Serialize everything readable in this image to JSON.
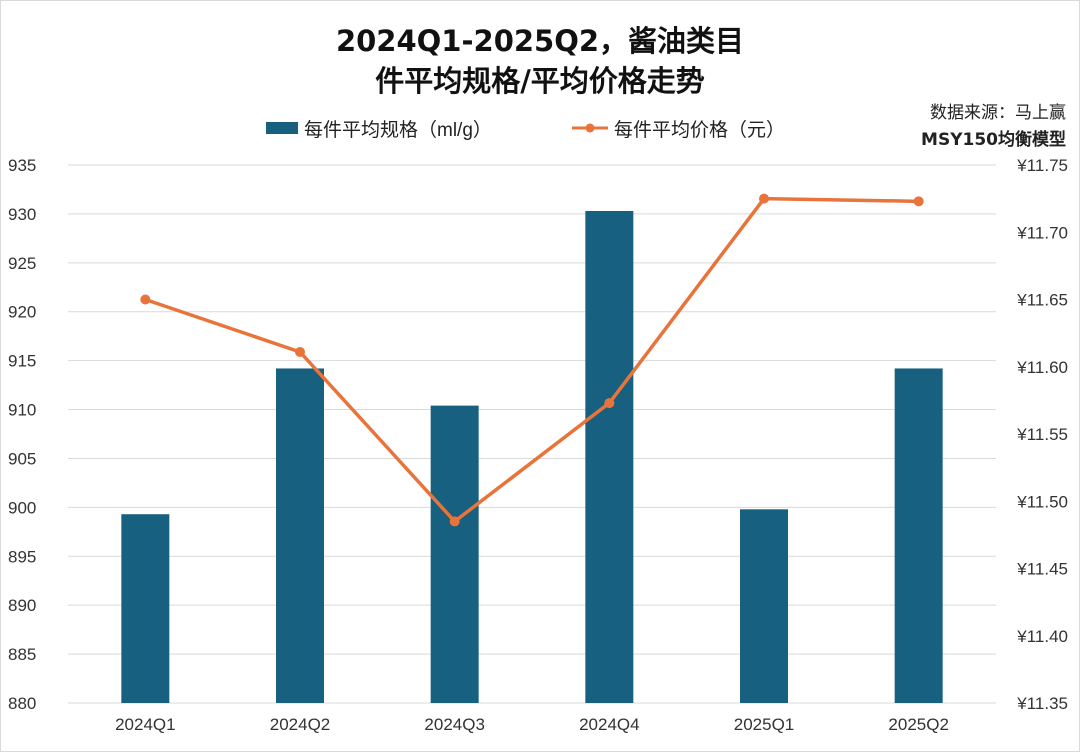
{
  "chart_data": {
    "type": "bar+line",
    "title_line1": "2024Q1-2025Q2，酱油类目",
    "title_line2": "件平均规格/平均价格走势",
    "source_line1": "数据来源：马上赢",
    "source_line2": "MSY150均衡模型",
    "categories": [
      "2024Q1",
      "2024Q2",
      "2024Q3",
      "2024Q4",
      "2025Q1",
      "2025Q2"
    ],
    "series": [
      {
        "name": "每件平均规格（ml/g）",
        "type": "bar",
        "axis": "left",
        "color": "#17607f",
        "values": [
          899.3,
          914.2,
          910.4,
          930.3,
          899.8,
          914.2
        ]
      },
      {
        "name": "每件平均价格（元）",
        "type": "line",
        "axis": "right",
        "color": "#e8743b",
        "values": [
          11.65,
          11.611,
          11.485,
          11.573,
          11.725,
          11.723
        ]
      }
    ],
    "left_axis": {
      "ylim": [
        880,
        935
      ],
      "ticks": [
        "880",
        "885",
        "890",
        "895",
        "900",
        "905",
        "910",
        "915",
        "920",
        "925",
        "930",
        "935"
      ]
    },
    "right_axis": {
      "ylim": [
        11.35,
        11.75
      ],
      "ticks": [
        "¥11.35",
        "¥11.40",
        "¥11.45",
        "¥11.50",
        "¥11.55",
        "¥11.60",
        "¥11.65",
        "¥11.70",
        "¥11.75"
      ]
    },
    "grid": true,
    "legend_position": "top"
  }
}
